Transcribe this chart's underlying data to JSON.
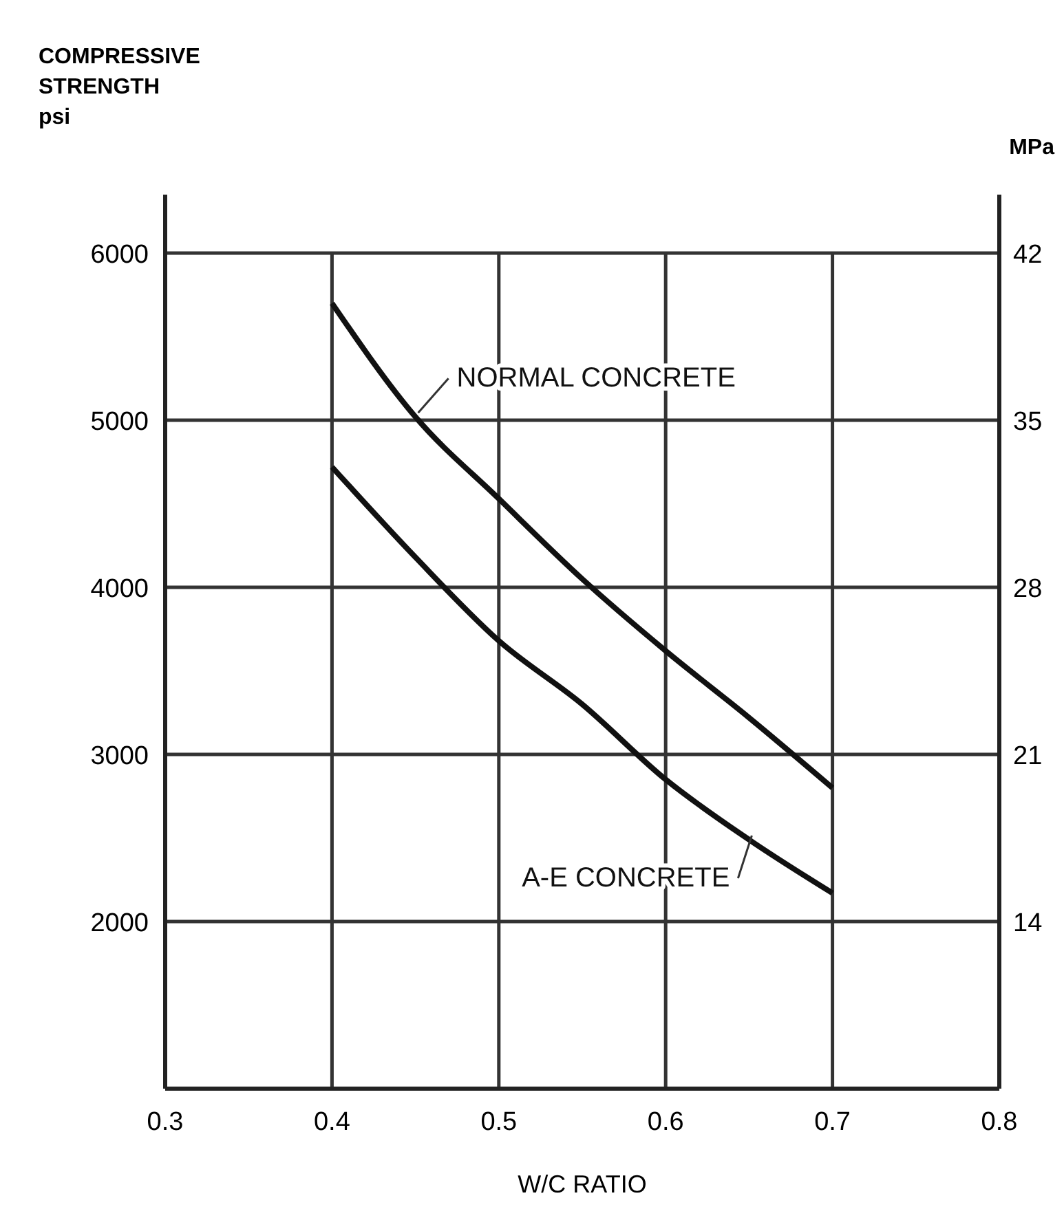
{
  "chart_data": {
    "type": "line",
    "ylabel": "COMPRESSIVE\nSTRENGTH\npsi",
    "y2label": "MPa",
    "xlabel": "W/C RATIO",
    "x": [
      0.4,
      0.45,
      0.5,
      0.55,
      0.6,
      0.65,
      0.7
    ],
    "series": [
      {
        "name": "NORMAL CONCRETE",
        "color": "#111111",
        "values": [
          5700,
          5020,
          4530,
          4050,
          3620,
          3220,
          2800
        ]
      },
      {
        "name": "A-E CONCRETE",
        "color": "#111111",
        "values": [
          4720,
          4180,
          3680,
          3300,
          2850,
          2490,
          2170
        ]
      }
    ],
    "xlim": [
      0.3,
      0.8
    ],
    "xticks": [
      0.3,
      0.4,
      0.5,
      0.6,
      0.7,
      0.8
    ],
    "ylim": [
      1000,
      6350
    ],
    "yticks": [
      2000,
      3000,
      4000,
      5000,
      6000
    ],
    "y2lim": [
      7,
      44.45
    ],
    "y2ticks": [
      14,
      21,
      28,
      35,
      42
    ],
    "grid": true,
    "marker": "none",
    "line_style": "solid"
  }
}
